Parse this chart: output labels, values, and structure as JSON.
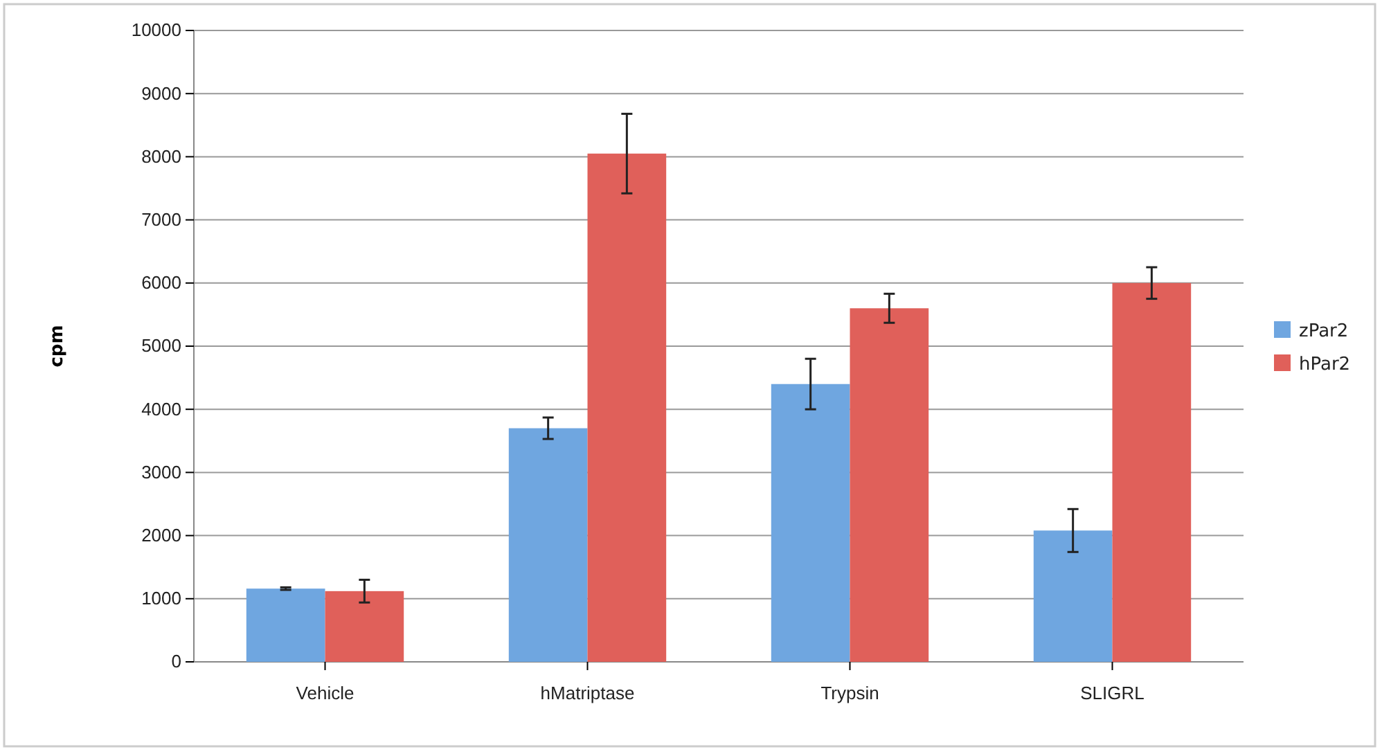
{
  "chart_data": {
    "type": "bar",
    "ylabel": "cpm",
    "categories": [
      "Vehicle",
      "hMatriptase",
      "Trypsin",
      "SLIGRL"
    ],
    "series": [
      {
        "name": "zPar2",
        "color": "#6fa6e0",
        "values": [
          1160,
          3700,
          4400,
          2080
        ],
        "errors": [
          20,
          170,
          400,
          340
        ]
      },
      {
        "name": "hPar2",
        "color": "#e0605a",
        "values": [
          1120,
          8050,
          5600,
          6000
        ],
        "errors": [
          180,
          630,
          230,
          250
        ]
      }
    ],
    "ylim": [
      0,
      10000
    ],
    "yticks": [
      0,
      1000,
      2000,
      3000,
      4000,
      5000,
      6000,
      7000,
      8000,
      9000,
      10000
    ],
    "grid": "y",
    "legend": "right"
  }
}
